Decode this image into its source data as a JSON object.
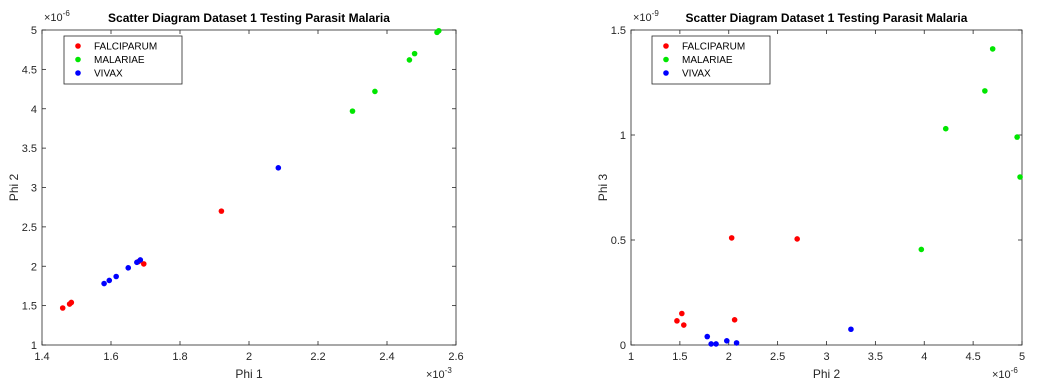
{
  "chart_data": [
    {
      "type": "scatter",
      "title": "Scatter Diagram Dataset 1 Testing Parasit Malaria",
      "xlabel": "Phi 1",
      "ylabel": "Phi 2",
      "x_exponent": "×10",
      "x_exponent_power": "-3",
      "y_exponent": "×10",
      "y_exponent_power": "-6",
      "xlim": [
        1.4,
        2.6
      ],
      "ylim": [
        1,
        5
      ],
      "xticks": [
        "1.4",
        "1.6",
        "1.8",
        "2",
        "2.2",
        "2.4",
        "2.6"
      ],
      "yticks": [
        "1",
        "1.5",
        "2",
        "2.5",
        "3",
        "3.5",
        "4",
        "4.5",
        "5"
      ],
      "grid": false,
      "legend_position": "top-left",
      "series": [
        {
          "name": "FALCIPARUM",
          "color": "#ff0000",
          "x": [
            1.46,
            1.48,
            1.485,
            1.68,
            1.695,
            1.92
          ],
          "y": [
            1.47,
            1.52,
            1.54,
            2.06,
            2.03,
            2.7
          ]
        },
        {
          "name": "MALARIAE",
          "color": "#00e600",
          "x": [
            2.3,
            2.365,
            2.465,
            2.48,
            2.545,
            2.55
          ],
          "y": [
            3.97,
            4.22,
            4.62,
            4.7,
            4.97,
            4.99
          ]
        },
        {
          "name": "VIVAX",
          "color": "#0000ff",
          "x": [
            1.58,
            1.595,
            1.615,
            1.65,
            1.675,
            1.685,
            2.085
          ],
          "y": [
            1.78,
            1.82,
            1.87,
            1.98,
            2.05,
            2.08,
            3.25
          ]
        }
      ]
    },
    {
      "type": "scatter",
      "title": "Scatter Diagram Dataset 1 Testing Parasit Malaria",
      "xlabel": "Phi 2",
      "ylabel": "Phi 3",
      "x_exponent": "×10",
      "x_exponent_power": "-6",
      "y_exponent": "×10",
      "y_exponent_power": "-9",
      "xlim": [
        1,
        5
      ],
      "ylim": [
        0,
        1.5
      ],
      "xticks": [
        "1",
        "1.5",
        "2",
        "2.5",
        "3",
        "3.5",
        "4",
        "4.5",
        "5"
      ],
      "yticks": [
        "0",
        "0.5",
        "1",
        "1.5"
      ],
      "grid": false,
      "legend_position": "top-left",
      "series": [
        {
          "name": "FALCIPARUM",
          "color": "#ff0000",
          "x": [
            1.47,
            1.52,
            1.54,
            2.03,
            2.06,
            2.7
          ],
          "y": [
            0.115,
            0.15,
            0.095,
            0.51,
            0.12,
            0.505
          ]
        },
        {
          "name": "MALARIAE",
          "color": "#00e600",
          "x": [
            3.97,
            4.22,
            4.62,
            4.7,
            4.95,
            4.98
          ],
          "y": [
            0.455,
            1.03,
            1.21,
            1.41,
            0.99,
            0.8
          ]
        },
        {
          "name": "VIVAX",
          "color": "#0000ff",
          "x": [
            1.78,
            1.82,
            1.87,
            1.98,
            2.08,
            3.25
          ],
          "y": [
            0.04,
            0.005,
            0.005,
            0.02,
            0.01,
            0.075
          ]
        }
      ]
    }
  ]
}
